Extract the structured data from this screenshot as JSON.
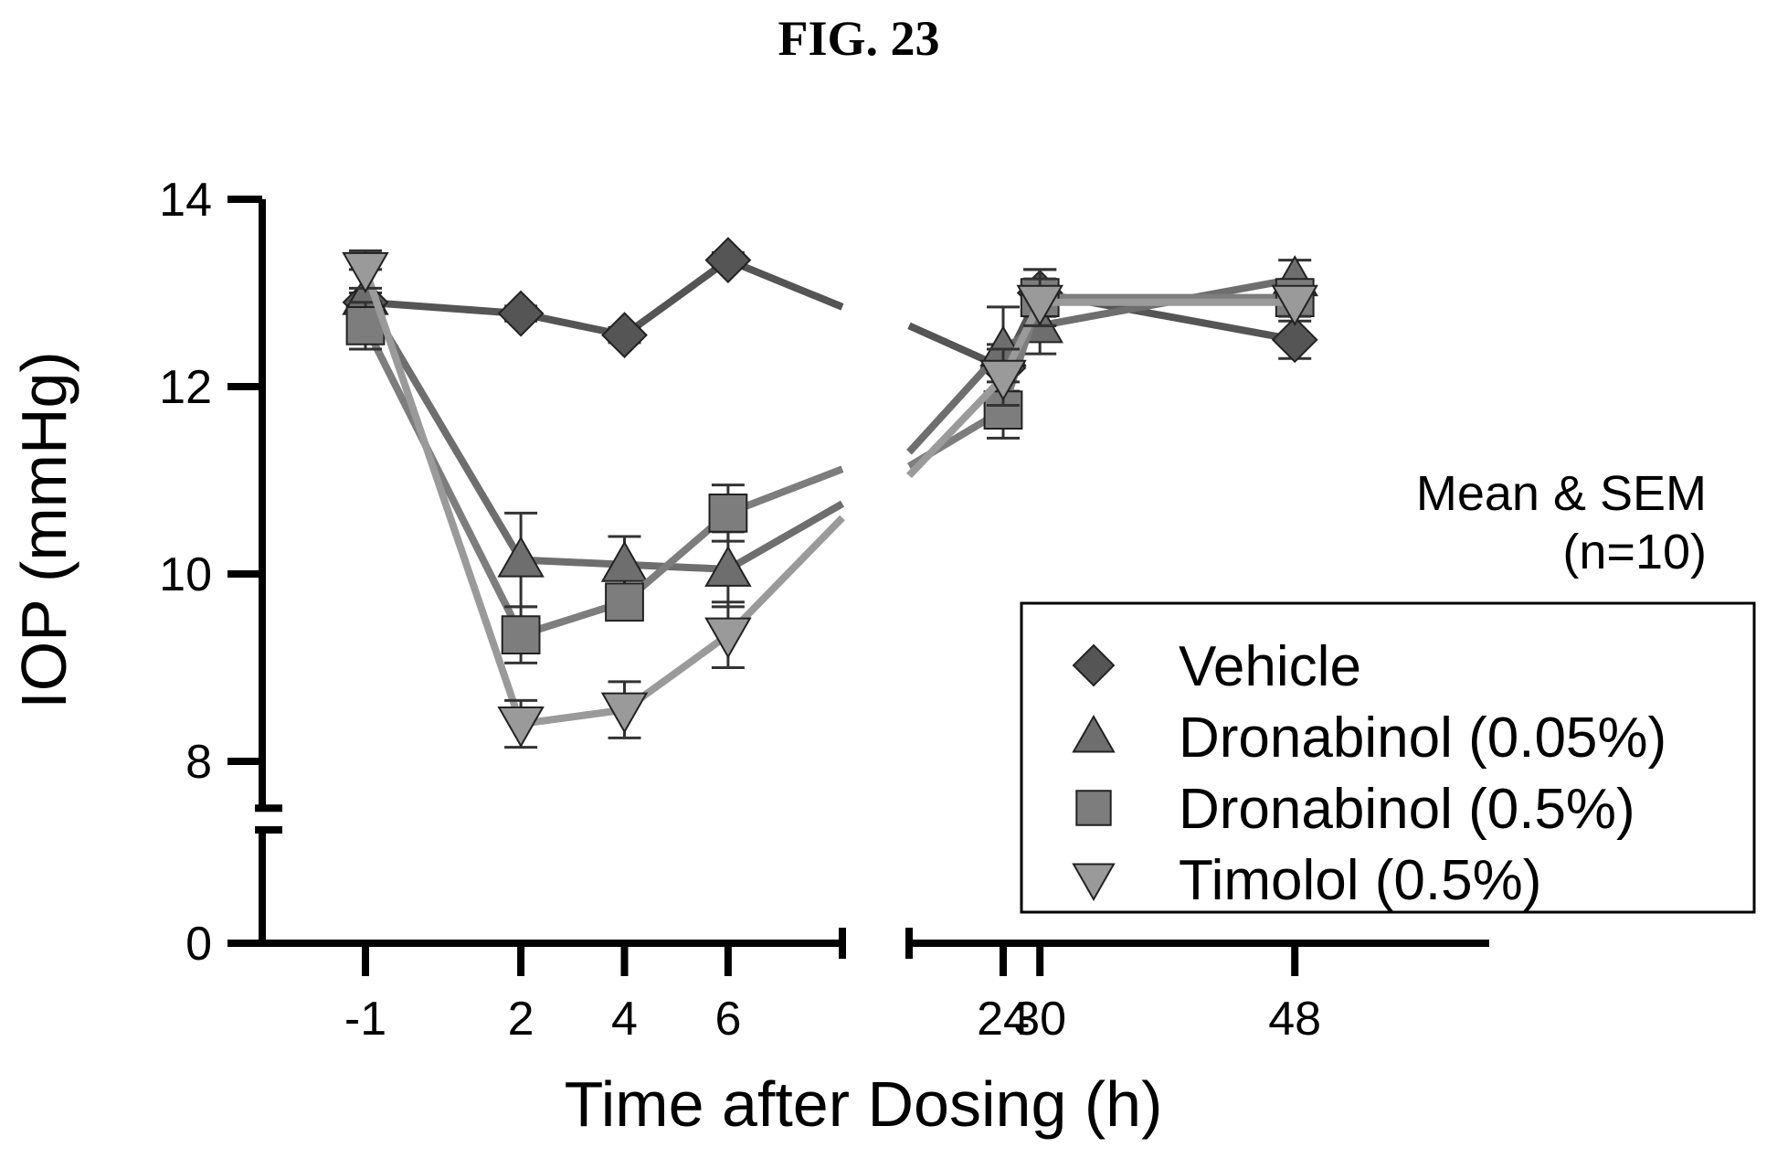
{
  "figure_title": "FIG. 23",
  "annotation": {
    "line1": "Mean & SEM",
    "line2": "(n=10)"
  },
  "colors": {
    "vehicle": "#555555",
    "dronabinol_005": "#6e6e6e",
    "dronabinol_05": "#7d7d7d",
    "timolol": "#9a9a9a"
  },
  "chart_data": {
    "type": "line",
    "title": "FIG. 23",
    "xlabel": "Time after Dosing (h)",
    "ylabel": "IOP (mmHg)",
    "x": [
      -1,
      2,
      4,
      6,
      24,
      30,
      48
    ],
    "x_ticks": [
      "-1",
      "2",
      "4",
      "6",
      "24",
      "30",
      "48"
    ],
    "y_ticks_upper": [
      "8",
      "10",
      "12",
      "14"
    ],
    "y_ticks_lower": [
      "0"
    ],
    "ylim_upper": [
      7.5,
      14
    ],
    "ylim_lower": [
      0,
      0.8
    ],
    "x_break": [
      8,
      22
    ],
    "grid": false,
    "legend_position": "lower-right",
    "series": [
      {
        "name": "Vehicle",
        "marker": "diamond",
        "values": [
          12.9,
          12.78,
          12.55,
          13.35,
          12.2,
          13.0,
          12.5
        ],
        "sem": [
          0.1,
          0.08,
          0.08,
          0.08,
          0.25,
          0.25,
          0.2
        ]
      },
      {
        "name": "Dronabinol (0.05%)",
        "marker": "triangle-up",
        "values": [
          12.95,
          10.15,
          10.1,
          10.05,
          12.4,
          12.65,
          13.15
        ],
        "sem": [
          0.3,
          0.5,
          0.3,
          0.4,
          0.45,
          0.3,
          0.2
        ]
      },
      {
        "name": "Dronabinol (0.5%)",
        "marker": "square",
        "values": [
          12.65,
          9.35,
          9.7,
          10.65,
          11.75,
          12.95,
          12.95
        ],
        "sem": [
          0.25,
          0.3,
          0.15,
          0.3,
          0.3,
          0.3,
          0.15
        ]
      },
      {
        "name": "Timolol (0.5%)",
        "marker": "triangle-down",
        "values": [
          13.25,
          8.4,
          8.55,
          9.35,
          12.1,
          12.9,
          12.9
        ],
        "sem": [
          0.2,
          0.25,
          0.3,
          0.35,
          0.3,
          0.25,
          0.15
        ]
      }
    ]
  }
}
